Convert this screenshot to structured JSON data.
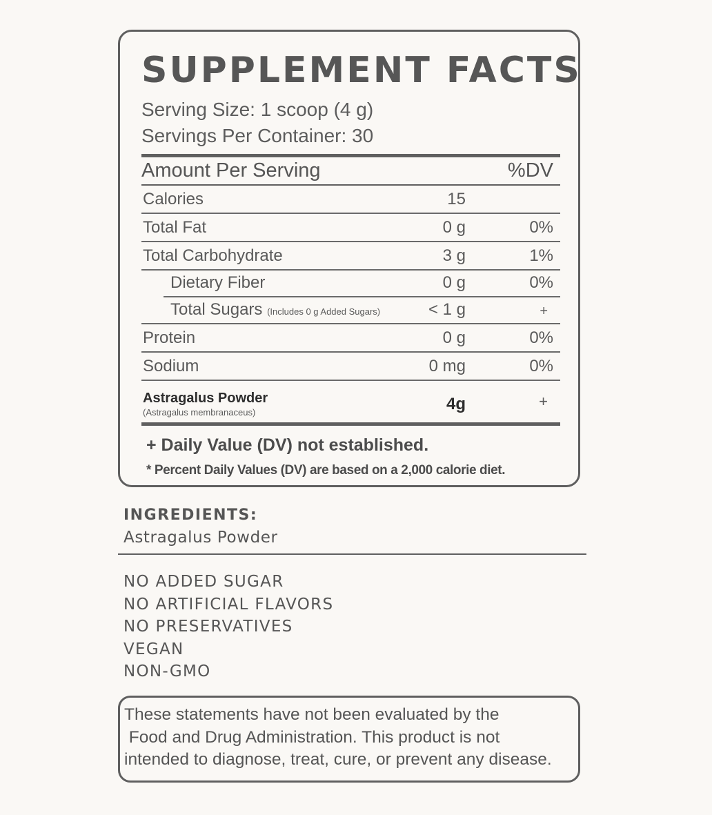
{
  "facts": {
    "title": "SUPPLEMENT FACTS",
    "serving_size": "Serving Size: 1 scoop (4 g)",
    "servings_per_container": "Servings Per Container: 30",
    "amount_header": "Amount Per Serving",
    "dv_header": "%DV",
    "rows": [
      {
        "name": "Calories",
        "amount": "15",
        "dv": ""
      },
      {
        "name": "Total Fat",
        "amount": "0 g",
        "dv": "0%"
      },
      {
        "name": "Total Carbohydrate",
        "amount": "3 g",
        "dv": "1%"
      },
      {
        "name": "Dietary Fiber",
        "amount": "0 g",
        "dv": "0%"
      },
      {
        "name": "Total Sugars",
        "note": "(Includes 0 g Added Sugars)",
        "amount": "< 1 g",
        "dv": "+"
      },
      {
        "name": "Protein",
        "amount": "0 g",
        "dv": "0%"
      },
      {
        "name": "Sodium",
        "amount": "0 mg",
        "dv": "0%"
      }
    ],
    "special": {
      "name": "Astragalus Powder",
      "latin": "(Astragalus membranaceus)",
      "amount": "4g",
      "dv": "+"
    },
    "dv_note": "+ Daily Value (DV) not established.",
    "percent_note": "* Percent Daily Values (DV) are based on a 2,000 calorie diet."
  },
  "ingredients": {
    "heading": "INGREDIENTS:",
    "value": "Astragalus Powder"
  },
  "claims": [
    "NO ADDED SUGAR",
    "NO ARTIFICIAL FLAVORS",
    "NO PRESERVATIVES",
    "VEGAN",
    "NON-GMO"
  ],
  "disclaimer": {
    "line1": "These statements have not been evaluated by the",
    "line2": " Food and Drug Administration. This product is not",
    "line3": "intended to diagnose, treat, cure, or prevent any disease."
  }
}
